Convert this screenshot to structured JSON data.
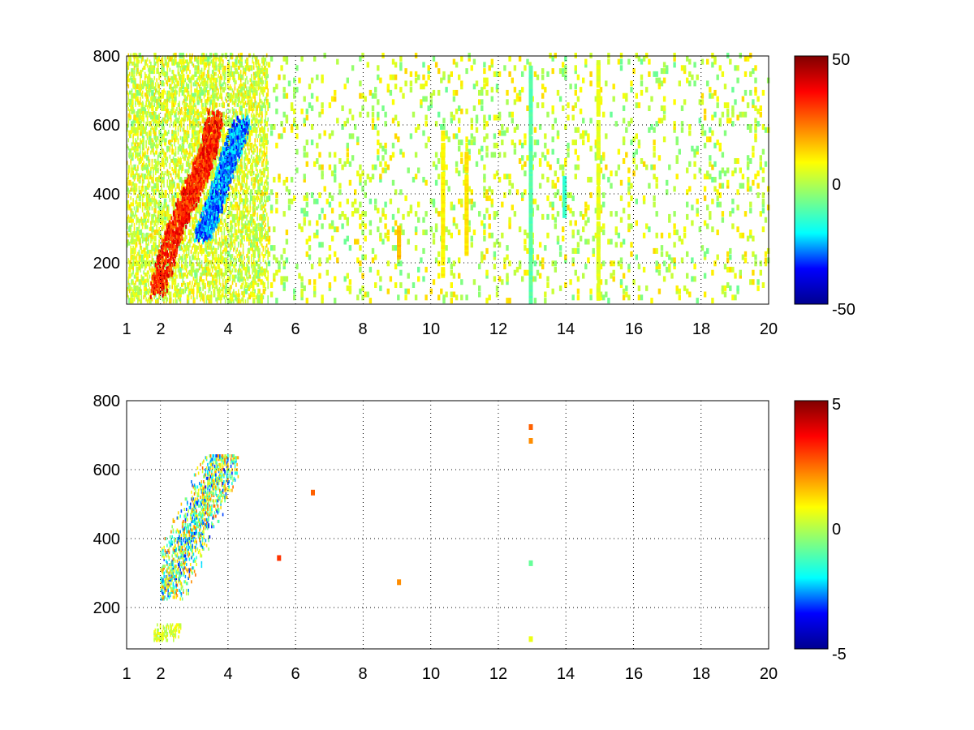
{
  "colormap": "jet",
  "colormap_stops": [
    "#00008f",
    "#0000ff",
    "#00ffff",
    "#80ff80",
    "#ffff00",
    "#ff8000",
    "#ff0000",
    "#800000"
  ],
  "chart_data": [
    {
      "type": "heatmap",
      "title": "",
      "xlabel": "",
      "ylabel": "",
      "xlim": [
        1,
        20
      ],
      "ylim": [
        80,
        800
      ],
      "x_scale": "linear",
      "x_ticks": [
        1,
        2,
        4,
        6,
        8,
        10,
        12,
        14,
        16,
        18,
        20
      ],
      "y_ticks": [
        200,
        400,
        600,
        800
      ],
      "grid": true,
      "grid_style": "dotted",
      "missing_values_shown_as": "white",
      "colorbar": {
        "min": -50,
        "max": 50,
        "tick_labels": [
          "-50",
          "0",
          "50"
        ],
        "placement": "right"
      },
      "features": [
        {
          "kind": "ridge",
          "x": [
            1.9,
            2.3,
            2.7,
            3.1,
            3.4,
            3.6
          ],
          "y": [
            110,
            260,
            360,
            440,
            520,
            620
          ],
          "value": 40
        },
        {
          "kind": "ridge",
          "x": [
            3.2,
            3.5,
            3.8,
            4.1,
            4.4
          ],
          "y": [
            270,
            340,
            430,
            520,
            600
          ],
          "value": -35
        },
        {
          "kind": "column",
          "x": 12.95,
          "y": [
            80,
            760
          ],
          "value": -12
        },
        {
          "kind": "column",
          "x": 11.05,
          "y": [
            220,
            520
          ],
          "value": 10
        },
        {
          "kind": "column",
          "x": 10.35,
          "y": [
            150,
            580
          ],
          "value": 8
        },
        {
          "kind": "column",
          "x": 13.95,
          "y": [
            330,
            440
          ],
          "value": -15
        },
        {
          "kind": "column",
          "x": 14.95,
          "y": [
            90,
            780
          ],
          "value": 4
        },
        {
          "kind": "column",
          "x": 9.05,
          "y": [
            210,
            300
          ],
          "value": 15
        }
      ]
    },
    {
      "type": "heatmap",
      "title": "",
      "xlabel": "",
      "ylabel": "",
      "xlim": [
        1,
        20
      ],
      "ylim": [
        80,
        800
      ],
      "x_scale": "linear",
      "x_ticks": [
        1,
        2,
        4,
        6,
        8,
        10,
        12,
        14,
        16,
        18,
        20
      ],
      "y_ticks": [
        200,
        400,
        600,
        800
      ],
      "grid": true,
      "grid_style": "dotted",
      "missing_values_shown_as": "white",
      "colorbar": {
        "min": -5,
        "max": 5,
        "tick_labels": [
          "-5",
          "0",
          "5"
        ],
        "placement": "right"
      },
      "features": [
        {
          "kind": "cluster",
          "x": [
            2.0,
            4.3
          ],
          "y": [
            220,
            640
          ],
          "value_range": [
            -3.5,
            2.5
          ]
        },
        {
          "kind": "cluster",
          "x": [
            1.8,
            2.6
          ],
          "y": [
            100,
            150
          ],
          "value_range": [
            -0.5,
            1.0
          ]
        },
        {
          "kind": "patch",
          "x": 12.95,
          "y": 720,
          "value": 2.5
        },
        {
          "kind": "patch",
          "x": 12.95,
          "y": 680,
          "value": 2.0
        },
        {
          "kind": "patch",
          "x": 12.95,
          "y": 325,
          "value": -1.0
        },
        {
          "kind": "patch",
          "x": 12.95,
          "y": 105,
          "value": 0.5
        },
        {
          "kind": "patch",
          "x": 9.05,
          "y": 270,
          "value": 2.0
        },
        {
          "kind": "patch",
          "x": 5.5,
          "y": 340,
          "value": 3.0
        },
        {
          "kind": "patch",
          "x": 6.5,
          "y": 530,
          "value": 2.5
        }
      ]
    }
  ]
}
